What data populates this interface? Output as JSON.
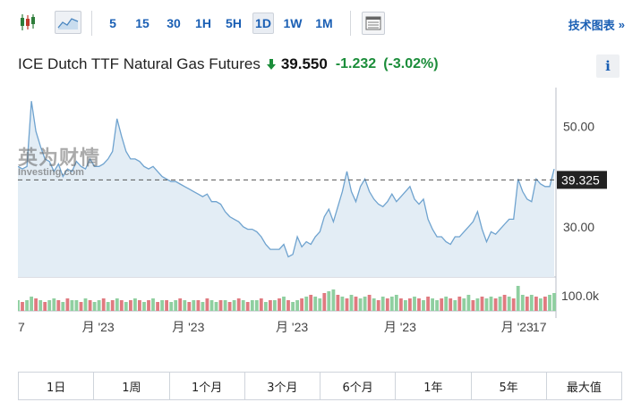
{
  "toolbar": {
    "candlestick_icon": "candlestick-icon",
    "area_icon": "area-chart-icon",
    "timeframes": [
      {
        "label": "5"
      },
      {
        "label": "15"
      },
      {
        "label": "30"
      },
      {
        "label": "1H"
      },
      {
        "label": "5H"
      },
      {
        "label": "1D",
        "active": true
      },
      {
        "label": "1W"
      },
      {
        "label": "1M"
      }
    ],
    "table_icon": "table-icon",
    "tech_chart_label": "技术图表",
    "tech_chart_arrow": "»"
  },
  "quote": {
    "name": "ICE Dutch TTF Natural Gas Futures",
    "direction": "down",
    "price": "39.550",
    "change": "-1.232",
    "change_pct": "(-3.02%)",
    "change_color": "#1b8d3a",
    "info_label": "i"
  },
  "watermark": {
    "cn": "英为财情",
    "en": "Investing.com"
  },
  "chart_data": {
    "type": "area",
    "x": [
      0,
      1,
      2,
      3,
      4,
      5,
      6,
      7,
      8,
      9,
      10,
      11,
      12,
      13,
      14,
      15,
      16,
      17,
      18,
      19,
      20,
      21,
      22,
      23,
      24,
      25,
      26,
      27,
      28,
      29,
      30,
      31,
      32,
      33,
      34,
      35,
      36,
      37,
      38,
      39,
      40,
      41,
      42,
      43,
      44,
      45,
      46,
      47,
      48,
      49,
      50,
      51,
      52,
      53,
      54,
      55,
      56,
      57,
      58,
      59,
      60,
      61,
      62,
      63,
      64,
      65,
      66,
      67,
      68,
      69,
      70,
      71,
      72,
      73,
      74,
      75,
      76,
      77,
      78,
      79,
      80,
      81,
      82,
      83,
      84,
      85,
      86,
      87,
      88,
      89,
      90,
      91,
      92,
      93,
      94,
      95,
      96,
      97,
      98,
      99,
      100,
      101,
      102,
      103,
      104,
      105,
      106,
      107,
      108,
      109,
      110,
      111,
      112,
      113,
      114,
      115,
      116,
      117,
      118,
      119
    ],
    "values": [
      42,
      41.5,
      42,
      55,
      49,
      46,
      43.5,
      43,
      41,
      42.5,
      40,
      41.5,
      41,
      43,
      42,
      41.5,
      43.5,
      42,
      42,
      42.5,
      43.5,
      45,
      51.5,
      48,
      45,
      43.5,
      43.5,
      43,
      42,
      41.5,
      42,
      41,
      40,
      39.5,
      39,
      39,
      38.5,
      38,
      37.5,
      37,
      36.5,
      36,
      36.5,
      35,
      35,
      34.5,
      33,
      32,
      31.5,
      31,
      30,
      29.5,
      29.5,
      29,
      28,
      26.5,
      25.5,
      25.5,
      25.5,
      26.5,
      24,
      24.5,
      28,
      26,
      27,
      26.5,
      28,
      29,
      32,
      33.5,
      31,
      34,
      37,
      41,
      37,
      35,
      38,
      39.5,
      37,
      35.5,
      34.5,
      34,
      35,
      36.5,
      35,
      36,
      37,
      38,
      35.5,
      34.5,
      35.5,
      31.5,
      29.5,
      28,
      28,
      27,
      26.5,
      28,
      28,
      29,
      30,
      31,
      33,
      29.5,
      27,
      29,
      28.5,
      29.5,
      30.5,
      31.5,
      31.5,
      39.5,
      37,
      35.5,
      35,
      39.5,
      38.5,
      38,
      38,
      41.5
    ],
    "volume": [
      6,
      5,
      6,
      8,
      7,
      6,
      5,
      6,
      7,
      6,
      5,
      7,
      6,
      6,
      5,
      7,
      6,
      5,
      6,
      7,
      5,
      6,
      7,
      6,
      5,
      6,
      7,
      6,
      5,
      6,
      7,
      5,
      6,
      6,
      5,
      6,
      7,
      6,
      5,
      6,
      6,
      5,
      7,
      6,
      5,
      6,
      6,
      5,
      6,
      7,
      6,
      5,
      6,
      6,
      7,
      5,
      6,
      6,
      7,
      8,
      6,
      5,
      6,
      7,
      8,
      9,
      8,
      7,
      10,
      11,
      12,
      9,
      8,
      7,
      9,
      8,
      7,
      8,
      9,
      7,
      6,
      8,
      7,
      8,
      9,
      7,
      6,
      7,
      8,
      7,
      6,
      8,
      7,
      6,
      7,
      8,
      7,
      6,
      8,
      7,
      9,
      6,
      7,
      8,
      7,
      8,
      7,
      8,
      9,
      8,
      7,
      14,
      9,
      8,
      9,
      8,
      7,
      8,
      9,
      10
    ],
    "volume_up": [
      true,
      false,
      true,
      true,
      false,
      true,
      false,
      true,
      true,
      false,
      true,
      false,
      true,
      true,
      false,
      true,
      false,
      true,
      true,
      false,
      true,
      false,
      true,
      false,
      true,
      false,
      true,
      false,
      true,
      false,
      true,
      false,
      true,
      false,
      true,
      true,
      false,
      true,
      false,
      true,
      false,
      true,
      false,
      true,
      true,
      false,
      true,
      false,
      true,
      false,
      true,
      false,
      true,
      true,
      false,
      true,
      false,
      true,
      false,
      true,
      false,
      true,
      true,
      false,
      true,
      false,
      true,
      true,
      false,
      true,
      true,
      false,
      true,
      false,
      true,
      false,
      true,
      true,
      false,
      true,
      false,
      true,
      false,
      true,
      true,
      false,
      true,
      false,
      true,
      false,
      true,
      false,
      true,
      true,
      false,
      true,
      false,
      true,
      false,
      true,
      true,
      false,
      true,
      false,
      true,
      true,
      false,
      true,
      false,
      true,
      false,
      true,
      true,
      false,
      true,
      false,
      true,
      false,
      true,
      true
    ],
    "y_ticks": [
      "50.00",
      "30.00"
    ],
    "y_tick_values": [
      50,
      30
    ],
    "volume_tick": "100.0k",
    "ylim": [
      20,
      57
    ],
    "current_value": "39.325",
    "current_level": 39.325,
    "x_tick_labels": [
      "7",
      "月 '23",
      "月 '23",
      "月 '23",
      "月 '23",
      "月 '23",
      "17"
    ],
    "x_tick_positions": [
      0,
      17,
      37,
      60,
      84,
      110,
      117
    ],
    "line_color": "#6fa3cf",
    "area_color": "#e3edf5",
    "volume_up_color": "#8fcfa0",
    "volume_down_color": "#e07a80"
  },
  "ranges": [
    "1日",
    "1周",
    "1个月",
    "3个月",
    "6个月",
    "1年",
    "5年",
    "最大值"
  ]
}
